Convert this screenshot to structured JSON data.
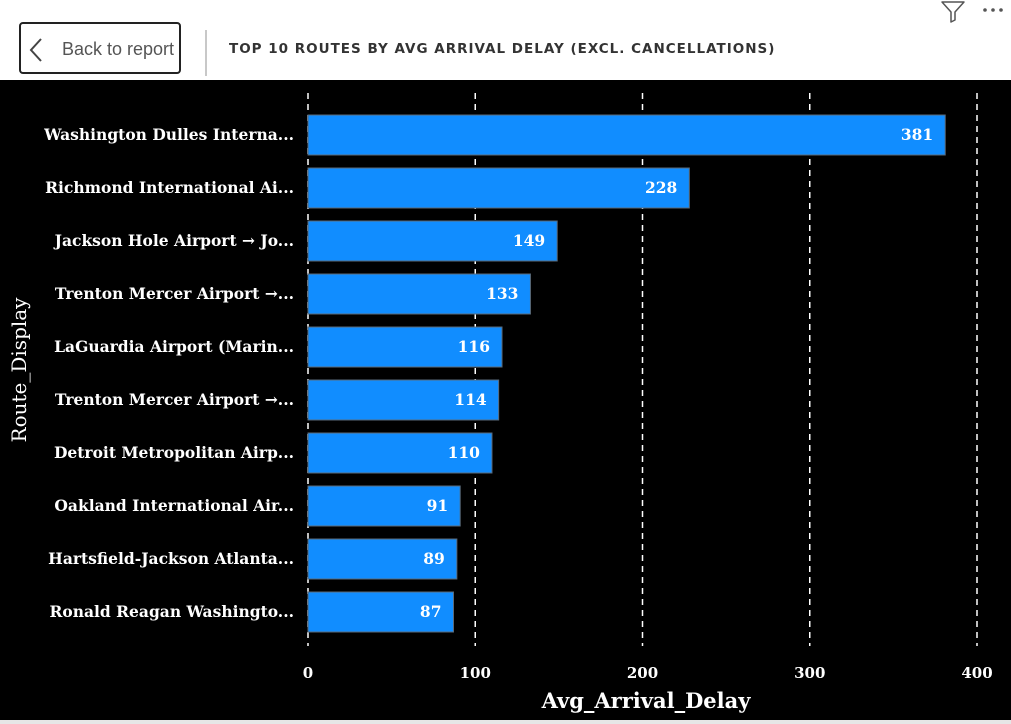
{
  "header": {
    "back_label": "Back to report",
    "title": "TOP 10 ROUTES BY AVG ARRIVAL DELAY (EXCL. CANCELLATIONS)",
    "filter_icon": "filter-icon",
    "more_icon": "more-options-icon"
  },
  "colors": {
    "bar": "#118dff",
    "background": "#000000",
    "text": "#ffffff"
  },
  "chart_data": {
    "type": "bar",
    "orientation": "horizontal",
    "title": "TOP 10 ROUTES BY AVG ARRIVAL DELAY (EXCL. CANCELLATIONS)",
    "xlabel": "Avg_Arrival_Delay",
    "ylabel": "Route_Display",
    "xlim": [
      0,
      400
    ],
    "xticks": [
      "0",
      "100",
      "200",
      "300",
      "400"
    ],
    "grid": true,
    "categories": [
      "Washington Dulles Interna...",
      "Richmond International Ai...",
      "Jackson Hole Airport → Jo...",
      "Trenton Mercer Airport →...",
      "LaGuardia Airport (Marin...",
      "Trenton Mercer Airport →...",
      "Detroit Metropolitan Airp...",
      "Oakland International Air...",
      "Hartsfield-Jackson Atlanta...",
      "Ronald Reagan Washingto..."
    ],
    "values": [
      381,
      228,
      149,
      133,
      116,
      114,
      110,
      91,
      89,
      87
    ],
    "data_labels": [
      "381",
      "228",
      "149",
      "133",
      "116",
      "114",
      "110",
      "91",
      "89",
      "87"
    ]
  }
}
